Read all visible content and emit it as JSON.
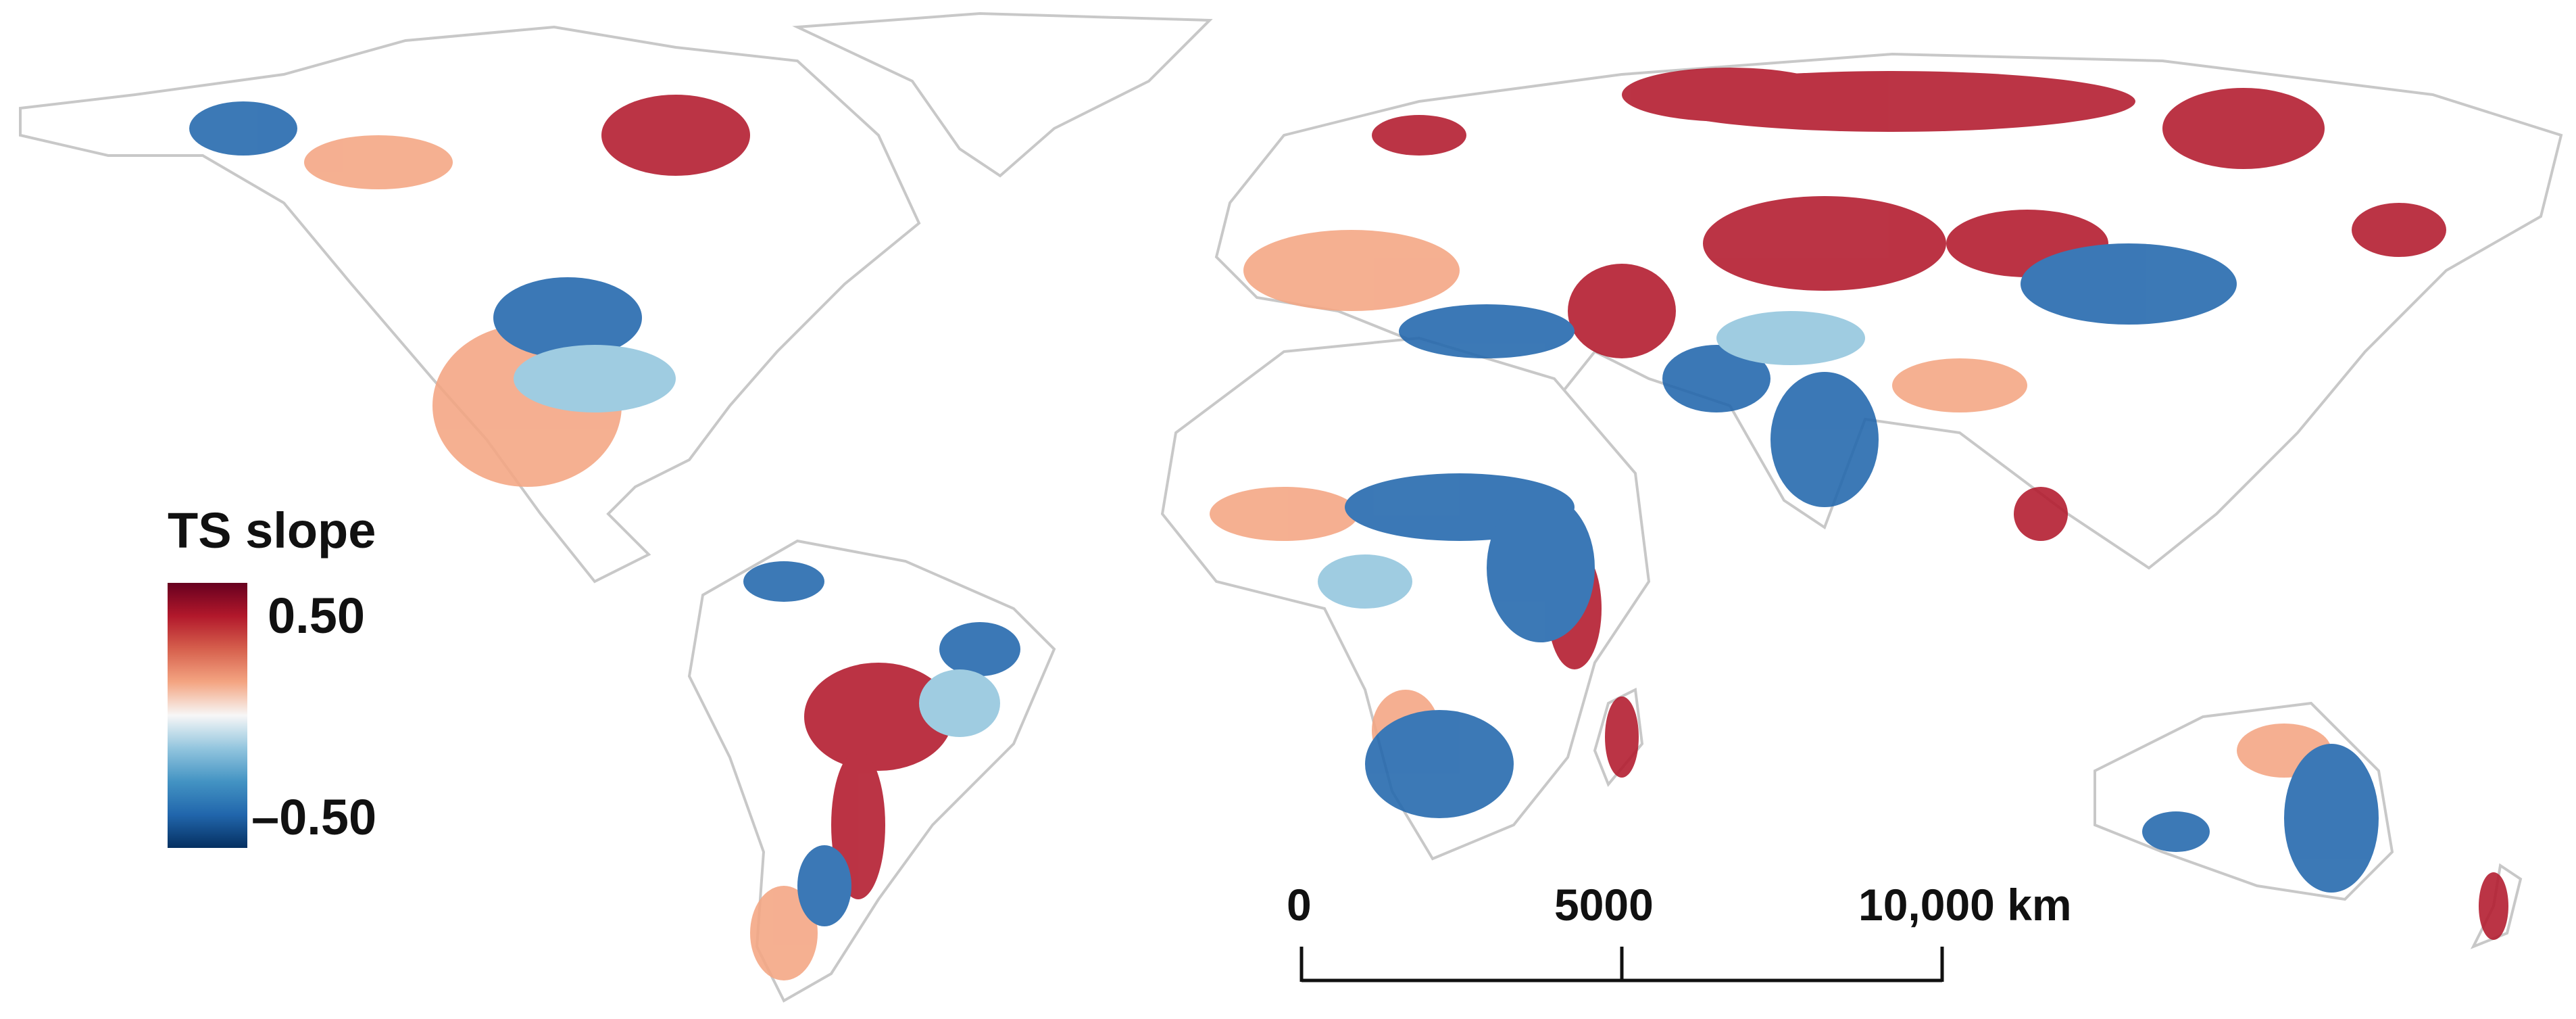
{
  "legend": {
    "title": "TS slope",
    "max_label": "0.50",
    "min_label": "–0.50",
    "colors": [
      "#053061",
      "#2166ac",
      "#4393c3",
      "#92c5de",
      "#f7f7f7",
      "#f4a582",
      "#d6604d",
      "#b2182b",
      "#67001f"
    ]
  },
  "scale_bar": {
    "labels": [
      "0",
      "5000",
      "10,000 km"
    ]
  },
  "map": {
    "land_color": "#ffffff",
    "border_color": "#c8c8c8",
    "positive_color": "#b2182b",
    "negative_color": "#2166ac"
  }
}
